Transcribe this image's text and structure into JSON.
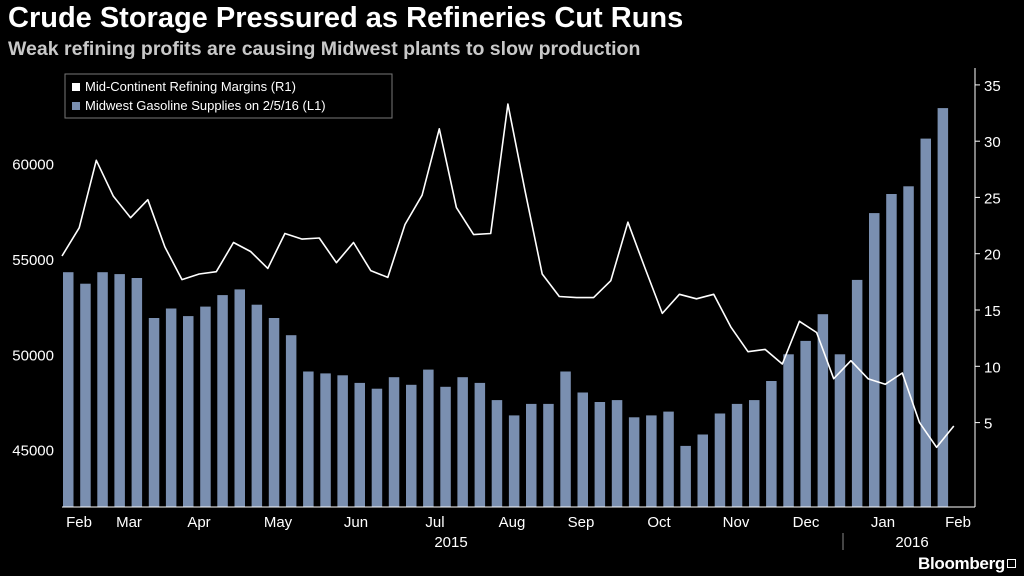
{
  "title": "Crude Storage Pressured as Refineries Cut Runs",
  "subtitle": "Weak refining profits are causing Midwest plants to slow production",
  "brand": "Bloomberg",
  "colors": {
    "bar": "#7a8fb0",
    "line": "#ffffff",
    "axis": "#ffffff",
    "background": "#000000"
  },
  "chart_data": {
    "type": "bar+line",
    "legend": [
      {
        "label": "Mid-Continent Refining Margins (R1)",
        "color": "#ffffff"
      },
      {
        "label": "Midwest Gasoline Supplies on 2/5/16 (L1)",
        "color": "#7a8fb0"
      }
    ],
    "legend_position": "top-left",
    "left_axis": {
      "ylim": [
        42000,
        65000
      ],
      "ticks": [
        45000,
        50000,
        55000,
        60000
      ],
      "tick_labels": [
        "45000",
        "50000",
        "55000",
        "60000"
      ]
    },
    "right_axis": {
      "ylim": [
        -2.5,
        36.5
      ],
      "ticks": [
        5,
        10,
        15,
        20,
        25,
        30,
        35
      ],
      "tick_labels": [
        "5",
        "10",
        "15",
        "20",
        "25",
        "30",
        "35"
      ]
    },
    "x_axis": {
      "months": [
        "Feb",
        "Mar",
        "Apr",
        "May",
        "Jun",
        "Jul",
        "Aug",
        "Sep",
        "Oct",
        "Nov",
        "Dec",
        "Jan",
        "Feb"
      ],
      "years": [
        "2015",
        "2016"
      ]
    },
    "series": [
      {
        "name": "Midwest Gasoline Supplies on 2/5/16 (L1)",
        "axis": "left",
        "kind": "bar",
        "values": [
          54300,
          53700,
          54300,
          54200,
          54000,
          51900,
          52400,
          52000,
          52500,
          53100,
          53400,
          52600,
          51900,
          51000,
          49100,
          49000,
          48900,
          48500,
          48200,
          48800,
          48400,
          49200,
          48300,
          48800,
          48500,
          47600,
          46800,
          47400,
          47400,
          49100,
          48000,
          47500,
          47600,
          46700,
          46800,
          47000,
          45200,
          45800,
          46900,
          47400,
          47600,
          48600,
          50000,
          50700,
          52100,
          50000,
          53900,
          57400,
          58400,
          58800,
          61300,
          62900
        ]
      },
      {
        "name": "Mid-Continent Refining Margins (R1)",
        "axis": "right",
        "kind": "line",
        "values": [
          19.8,
          22.3,
          28.3,
          25.1,
          23.2,
          24.8,
          20.6,
          17.7,
          18.2,
          18.4,
          21.0,
          20.2,
          18.7,
          21.8,
          21.3,
          21.4,
          19.2,
          21.0,
          18.5,
          17.9,
          22.6,
          25.2,
          31.1,
          24.1,
          21.7,
          21.8,
          33.3,
          25.6,
          18.2,
          16.2,
          16.1,
          16.1,
          17.6,
          22.8,
          18.7,
          14.7,
          16.4,
          16.0,
          16.4,
          13.5,
          11.3,
          11.5,
          10.2,
          14.0,
          13.0,
          8.9,
          10.5,
          8.9,
          8.4,
          9.4,
          5.0,
          2.8,
          4.7
        ]
      }
    ]
  }
}
